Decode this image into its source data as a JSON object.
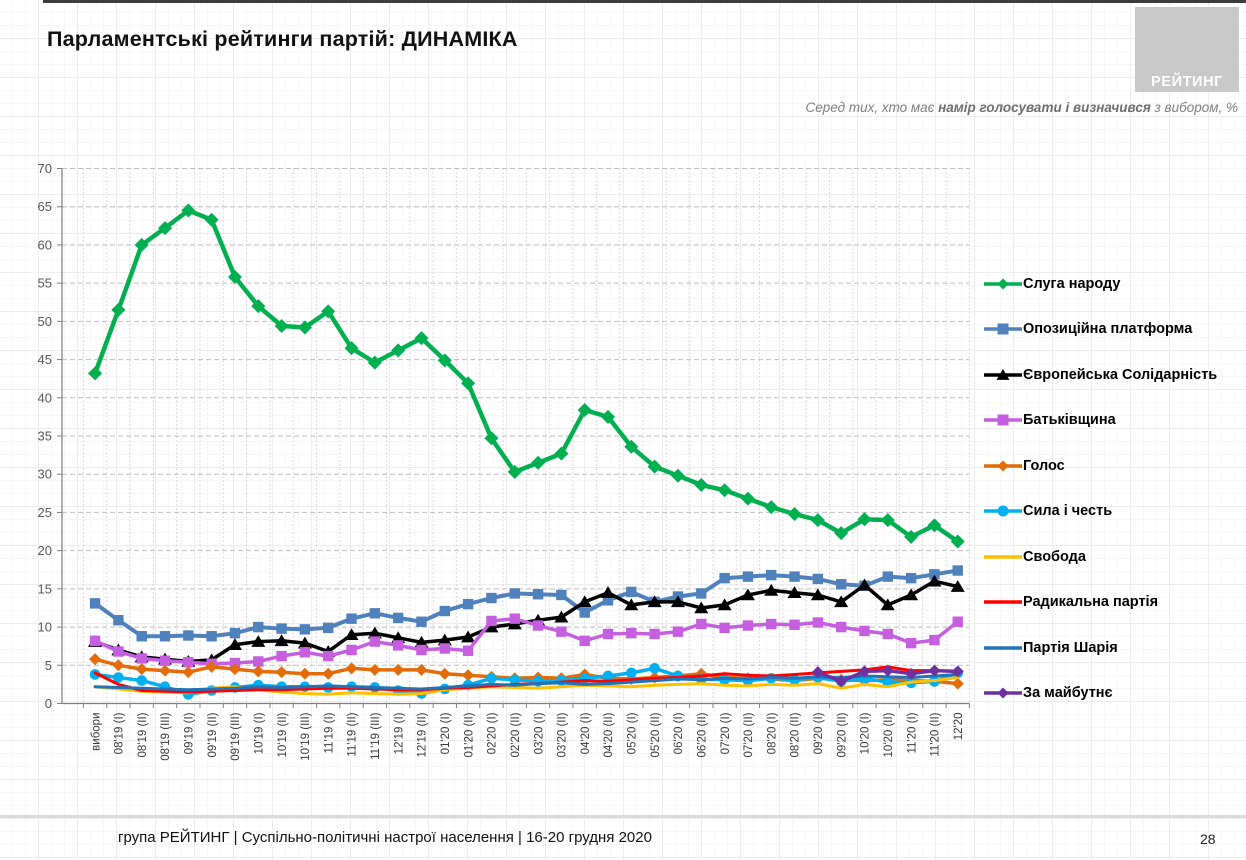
{
  "header": {
    "title": "Парламентські рейтинги партій: ДИНАМІКА"
  },
  "logo": {
    "text": "РЕЙТИНГ",
    "bg_color": "#c9c9c9",
    "text_color": "#ffffff"
  },
  "subtitle": {
    "prefix": "Серед тих, хто має ",
    "bold": "намір голосувати і визначився",
    "suffix": " з вибором, %"
  },
  "footer": {
    "source": "група РЕЙТИНГ | Суспільно-політичні настрої населення | 16-20 грудня 2020",
    "page": "28"
  },
  "chart_data": {
    "type": "line",
    "title": "Парламентські рейтинги партій: ДИНАМІКА",
    "xlabel": "",
    "ylabel": "",
    "ylim": [
      0,
      70
    ],
    "ytick_step": 5,
    "grid": "horizontal dashed + vertical dotted per category",
    "legend_position": "right",
    "x": [
      "вибори",
      "08'19 (I)",
      "08'19 (II)",
      "08'19 (III)",
      "09'19 (I)",
      "09'19 (II)",
      "09'19 (III)",
      "10'19 (I)",
      "10'19 (II)",
      "10'19 (III)",
      "11'19 (I)",
      "11'19 (II)",
      "11'19 (III)",
      "12'19 (I)",
      "12'19 (II)",
      "01'20 (I)",
      "01'20 (II)",
      "02'20 (I)",
      "02'20 (II)",
      "03'20 (I)",
      "03'20 (II)",
      "04'20 (I)",
      "04'20 (II)",
      "05'20 (I)",
      "05'20 (II)",
      "06'20 (I)",
      "06'20 (II)",
      "07'20 (I)",
      "07'20 (II)",
      "08'20 (I)",
      "08'20 (II)",
      "09'20 (I)",
      "09'20 (II)",
      "10'20 (I)",
      "10'20 (II)",
      "11'20 (I)",
      "11'20 (II)",
      "12'20"
    ],
    "series": [
      {
        "id": "sluha-narodu",
        "name": "Слуга народу",
        "color": "#00AF50",
        "marker": "diamond",
        "width": 4.5,
        "values": [
          43.2,
          51.5,
          60.0,
          62.2,
          64.5,
          63.3,
          55.8,
          52.0,
          49.4,
          49.2,
          51.3,
          46.5,
          44.6,
          46.2,
          47.8,
          44.9,
          41.9,
          34.7,
          30.3,
          31.5,
          32.7,
          38.4,
          37.5,
          33.6,
          31.0,
          29.8,
          28.6,
          27.9,
          26.8,
          25.7,
          24.8,
          24.0,
          22.3,
          24.1,
          24.0,
          21.8,
          23.3,
          21.2
        ]
      },
      {
        "id": "opozytsiina-platforma",
        "name": "Опозиційна платформа",
        "color": "#4F81BD",
        "marker": "square",
        "width": 4,
        "values": [
          13.1,
          10.9,
          8.8,
          8.8,
          8.9,
          8.8,
          9.2,
          10.0,
          9.8,
          9.7,
          9.9,
          11.1,
          11.8,
          11.2,
          10.7,
          12.1,
          13.0,
          13.8,
          14.4,
          14.3,
          14.2,
          11.9,
          13.5,
          14.6,
          13.3,
          14.0,
          14.4,
          16.4,
          16.6,
          16.8,
          16.6,
          16.3,
          15.6,
          15.4,
          16.6,
          16.4,
          16.9,
          17.4
        ]
      },
      {
        "id": "yevropeiska-solidarnist",
        "name": "Європейська Солідарність",
        "color": "#000000",
        "marker": "triangle",
        "width": 3.5,
        "values": [
          8.1,
          7.0,
          6.1,
          5.8,
          5.5,
          5.7,
          7.7,
          8.1,
          8.2,
          7.9,
          6.8,
          9.0,
          9.2,
          8.6,
          8.0,
          8.3,
          8.7,
          10.0,
          10.4,
          10.9,
          11.3,
          13.3,
          14.5,
          12.9,
          13.3,
          13.3,
          12.5,
          12.9,
          14.2,
          14.8,
          14.5,
          14.2,
          13.3,
          15.5,
          12.9,
          14.2,
          16.0,
          15.3
        ]
      },
      {
        "id": "batkivshchyna",
        "name": "Батьківщина",
        "color": "#C55FE0",
        "marker": "square",
        "width": 3.5,
        "values": [
          8.2,
          6.8,
          5.9,
          5.6,
          5.4,
          5.2,
          5.3,
          5.5,
          6.2,
          6.7,
          6.2,
          7.0,
          8.1,
          7.6,
          7.0,
          7.2,
          6.9,
          10.8,
          11.1,
          10.2,
          9.4,
          8.2,
          9.1,
          9.2,
          9.1,
          9.4,
          10.4,
          9.9,
          10.2,
          10.4,
          10.3,
          10.6,
          10.0,
          9.5,
          9.1,
          7.9,
          8.3,
          10.7
        ]
      },
      {
        "id": "holos",
        "name": "Голос",
        "color": "#E36C09",
        "marker": "diamond",
        "width": 3.5,
        "values": [
          5.8,
          5.0,
          4.5,
          4.3,
          4.1,
          4.8,
          4.5,
          4.2,
          4.1,
          3.9,
          3.9,
          4.6,
          4.4,
          4.4,
          4.4,
          3.9,
          3.7,
          3.5,
          3.3,
          3.4,
          3.3,
          3.8,
          3.3,
          3.2,
          3.4,
          3.6,
          3.9,
          3.4,
          3.3,
          3.2,
          3.0,
          3.3,
          3.1,
          3.0,
          3.1,
          3.0,
          2.9,
          2.6
        ]
      },
      {
        "id": "syla-i-chest",
        "name": "Сила і честь",
        "color": "#00B0F0",
        "marker": "circle",
        "width": 3.5,
        "values": [
          3.8,
          3.4,
          3.0,
          2.2,
          1.2,
          1.7,
          2.1,
          2.4,
          2.2,
          2.2,
          2.1,
          2.2,
          2.1,
          1.7,
          1.3,
          1.9,
          2.4,
          3.3,
          3.1,
          2.9,
          3.0,
          3.3,
          3.6,
          4.0,
          4.6,
          3.6,
          3.2,
          3.1,
          3.0,
          3.3,
          3.1,
          3.4,
          2.9,
          3.3,
          2.8,
          2.7,
          2.9,
          4.0
        ]
      },
      {
        "id": "svoboda",
        "name": "Свобода",
        "color": "#FFC000",
        "marker": "none",
        "width": 3,
        "values": [
          2.2,
          1.9,
          1.6,
          1.5,
          1.4,
          2.0,
          2.2,
          1.8,
          1.5,
          1.3,
          1.2,
          1.4,
          1.3,
          1.2,
          1.3,
          1.8,
          2.0,
          2.2,
          2.1,
          2.0,
          2.2,
          2.4,
          2.3,
          2.2,
          2.4,
          2.5,
          2.6,
          2.4,
          2.3,
          2.5,
          2.4,
          2.6,
          2.0,
          2.5,
          2.2,
          2.8,
          3.0,
          3.4
        ]
      },
      {
        "id": "radykalna-partiia",
        "name": "Радикальна партія",
        "color": "#FF0000",
        "marker": "none",
        "width": 3,
        "values": [
          4.0,
          2.5,
          1.7,
          1.6,
          1.5,
          1.6,
          1.7,
          1.8,
          1.8,
          1.9,
          2.0,
          2.0,
          1.9,
          1.8,
          1.8,
          2.0,
          2.1,
          2.3,
          2.5,
          2.6,
          2.8,
          3.0,
          2.9,
          3.1,
          3.3,
          3.4,
          3.6,
          3.9,
          3.7,
          3.6,
          3.8,
          4.0,
          4.2,
          4.4,
          4.8,
          4.3,
          4.3,
          4.2
        ]
      },
      {
        "id": "partiia-shariia",
        "name": "Партія Шарія",
        "color": "#2272B8",
        "marker": "none",
        "width": 3,
        "values": [
          2.2,
          2.1,
          2.0,
          1.9,
          1.8,
          1.9,
          2.0,
          2.2,
          2.1,
          2.2,
          2.3,
          2.2,
          2.1,
          2.0,
          1.9,
          2.1,
          2.3,
          2.5,
          2.4,
          2.6,
          2.7,
          2.5,
          2.6,
          2.8,
          3.0,
          3.2,
          3.1,
          3.3,
          3.2,
          3.4,
          3.3,
          3.5,
          3.4,
          3.6,
          3.5,
          3.4,
          3.6,
          3.8
        ]
      },
      {
        "id": "za-maibutnie",
        "name": "За майбутнє",
        "color": "#7030A0",
        "marker": "diamond",
        "width": 3.5,
        "values": [
          null,
          null,
          null,
          null,
          null,
          null,
          null,
          null,
          null,
          null,
          null,
          null,
          null,
          null,
          null,
          null,
          null,
          null,
          null,
          null,
          null,
          null,
          null,
          null,
          null,
          null,
          null,
          null,
          null,
          null,
          null,
          4.1,
          2.9,
          4.2,
          4.3,
          3.9,
          4.3,
          4.2
        ]
      }
    ]
  }
}
